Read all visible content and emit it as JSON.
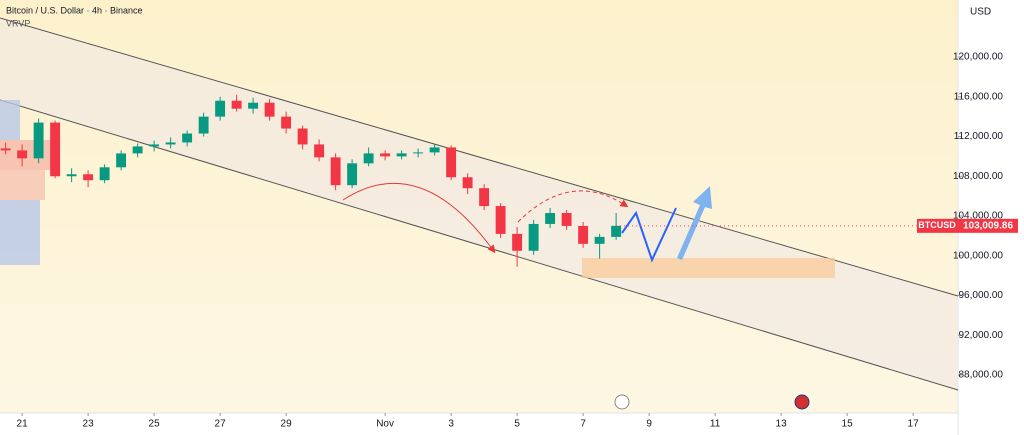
{
  "chart_data": {
    "type": "candlestick",
    "title": "Bitcoin / U.S. Dollar · 4h · Binance",
    "indicator": "VRVP",
    "currency": "USD",
    "symbol": "BTCUSD",
    "last_price": {
      "value": 103009.86,
      "label": "103,009.86"
    },
    "up_color": "#089981",
    "down_color": "#f23645",
    "xlim": [
      -0.67,
      28.36
    ],
    "xticks": [
      {
        "value": 0,
        "label": "21"
      },
      {
        "value": 2,
        "label": "23"
      },
      {
        "value": 4,
        "label": "25"
      },
      {
        "value": 6,
        "label": "27"
      },
      {
        "value": 8,
        "label": "29"
      },
      {
        "value": 11,
        "label": "Nov"
      },
      {
        "value": 13,
        "label": "3"
      },
      {
        "value": 15,
        "label": "5"
      },
      {
        "value": 17,
        "label": "7"
      },
      {
        "value": 19,
        "label": "9"
      },
      {
        "value": 21,
        "label": "11"
      },
      {
        "value": 23,
        "label": "13"
      },
      {
        "value": 25,
        "label": "15"
      },
      {
        "value": 27,
        "label": "17"
      }
    ],
    "ylim": [
      84176,
      125736
    ],
    "yticks": [
      {
        "value": 88000,
        "label": "88,000.00"
      },
      {
        "value": 92000,
        "label": "92,000.00"
      },
      {
        "value": 96000,
        "label": "96,000.00"
      },
      {
        "value": 100000,
        "label": "100,000.00"
      },
      {
        "value": 104000,
        "label": "104,000.00"
      },
      {
        "value": 108000,
        "label": "108,000.00"
      },
      {
        "value": 112000,
        "label": "112,000.00"
      },
      {
        "value": 116000,
        "label": "116,000.00"
      },
      {
        "value": 120000,
        "label": "120,000.00"
      }
    ],
    "x": [
      -0.5,
      0,
      0.5,
      1,
      1.5,
      2,
      2.5,
      3,
      3.5,
      4,
      4.5,
      5,
      5.5,
      6,
      6.5,
      7,
      7.5,
      8,
      8.5,
      9,
      9.5,
      10,
      10.5,
      11,
      11.5,
      12,
      12.5,
      13,
      13.5,
      14,
      14.5,
      15,
      15.5,
      16,
      16.5,
      17,
      17.5,
      18
    ],
    "open": [
      110800,
      110600,
      109800,
      113400,
      108000,
      108200,
      107600,
      108900,
      110300,
      111000,
      111200,
      111400,
      112300,
      114000,
      115600,
      114800,
      115400,
      114000,
      112800,
      111200,
      109900,
      107100,
      109300,
      110300,
      110000,
      110300,
      110400,
      110900,
      107900,
      106800,
      105000,
      102200,
      100500,
      103200,
      104300,
      103000,
      101200,
      101900
    ],
    "high": [
      111400,
      111200,
      113800,
      113600,
      108800,
      108600,
      109200,
      110600,
      111300,
      111600,
      111900,
      112600,
      114400,
      116000,
      116200,
      115900,
      115800,
      114500,
      113100,
      111700,
      110300,
      109700,
      110900,
      110600,
      110600,
      110800,
      111200,
      111100,
      108300,
      107200,
      105300,
      102900,
      103600,
      104800,
      104600,
      103400,
      102200,
      104300
    ],
    "low": [
      110200,
      109000,
      109300,
      107800,
      107400,
      106900,
      107300,
      108600,
      109900,
      110500,
      110800,
      111000,
      112000,
      113600,
      114500,
      114300,
      113600,
      112300,
      110700,
      109500,
      106600,
      106800,
      109000,
      109600,
      109700,
      109900,
      110100,
      107600,
      106200,
      104600,
      101800,
      98900,
      100100,
      102800,
      102600,
      100800,
      99700,
      101600
    ],
    "close": [
      110600,
      109800,
      113400,
      108000,
      108200,
      107600,
      108900,
      110300,
      111000,
      111200,
      111400,
      112300,
      114000,
      115600,
      114800,
      115400,
      114000,
      112800,
      111200,
      109900,
      107100,
      109300,
      110300,
      110000,
      110300,
      110400,
      110900,
      107900,
      106800,
      105000,
      102200,
      100500,
      103200,
      104300,
      103000,
      101200,
      101900,
      103010
    ]
  }
}
